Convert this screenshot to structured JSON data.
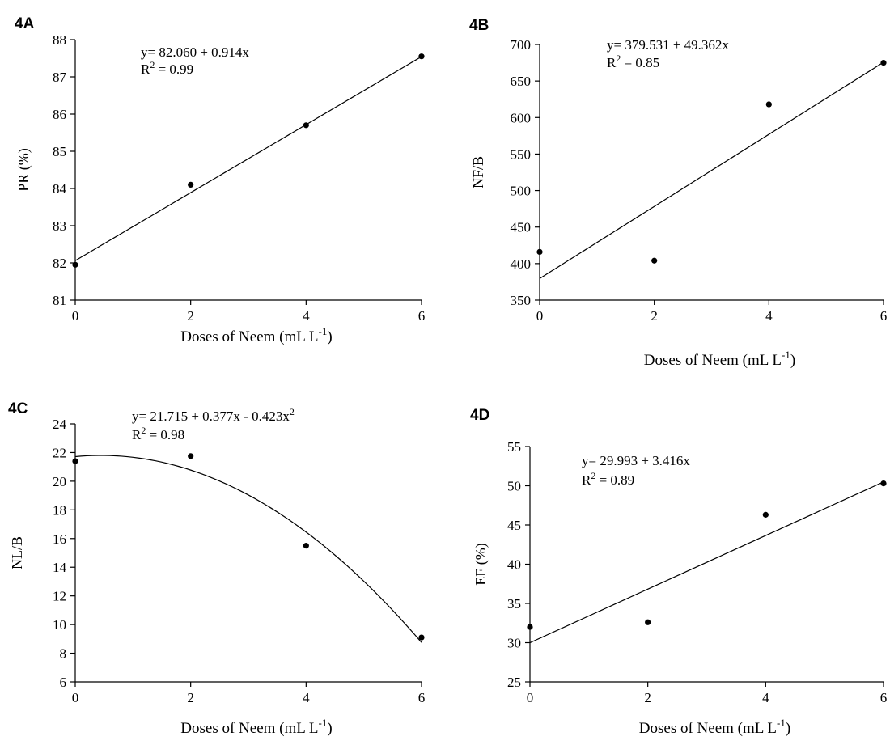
{
  "chart_data": [
    {
      "panel_label": "4A",
      "type": "scatter",
      "x": [
        0,
        2,
        4,
        6
      ],
      "y": [
        81.95,
        84.1,
        85.7,
        87.55
      ],
      "fit": {
        "kind": "linear",
        "intercept": 82.06,
        "b1": 0.914,
        "b2": 0
      },
      "equation": "y= 82.060 + 0.914x",
      "r2_prefix": "R",
      "r2_sup": "2",
      "r2_value": " = 0.99",
      "ylabel": "PR (%)",
      "xlabel": "Doses of Neem (mL L",
      "xlabel_sup": "-1",
      "xlabel_end": ")",
      "xlim": [
        0,
        6
      ],
      "ylim": [
        81,
        88
      ],
      "xticks": [
        0,
        2,
        4,
        6
      ],
      "yticks": [
        81,
        82,
        83,
        84,
        85,
        86,
        87,
        88
      ],
      "grid": false
    },
    {
      "panel_label": "4B",
      "type": "scatter",
      "x": [
        0,
        2,
        4,
        6
      ],
      "y": [
        416,
        404,
        618,
        675
      ],
      "fit": {
        "kind": "linear",
        "intercept": 379.531,
        "b1": 49.362,
        "b2": 0
      },
      "equation": "y= 379.531 + 49.362x",
      "r2_prefix": "R",
      "r2_sup": "2",
      "r2_value": " = 0.85",
      "ylabel": "NF/B",
      "xlabel": "Doses of Neem (mL  L",
      "xlabel_sup": "-1",
      "xlabel_end": ")",
      "xlim": [
        0,
        6
      ],
      "ylim": [
        350,
        700
      ],
      "xticks": [
        0,
        2,
        4,
        6
      ],
      "yticks": [
        350,
        400,
        450,
        500,
        550,
        600,
        650,
        700
      ],
      "grid": false
    },
    {
      "panel_label": "4C",
      "type": "scatter",
      "x": [
        0,
        2,
        4,
        6
      ],
      "y": [
        21.4,
        21.75,
        15.5,
        9.1
      ],
      "fit": {
        "kind": "quadratic",
        "intercept": 21.715,
        "b1": 0.377,
        "b2": -0.423
      },
      "equation": "y= 21.715 + 0.377x - 0.423x",
      "equation_sup": "2",
      "r2_prefix": "R",
      "r2_sup": "2",
      "r2_value": " = 0.98",
      "ylabel": "NL/B",
      "xlabel": "Doses of Neem (mL L",
      "xlabel_sup": "-1",
      "xlabel_end": ")",
      "xlim": [
        0,
        6
      ],
      "ylim": [
        6,
        24
      ],
      "xticks": [
        0,
        2,
        4,
        6
      ],
      "yticks": [
        6,
        8,
        10,
        12,
        14,
        16,
        18,
        20,
        22,
        24
      ],
      "grid": false
    },
    {
      "panel_label": "4D",
      "type": "scatter",
      "x": [
        0,
        2,
        4,
        6
      ],
      "y": [
        32.0,
        32.6,
        46.3,
        50.3
      ],
      "fit": {
        "kind": "linear",
        "intercept": 29.993,
        "b1": 3.416,
        "b2": 0
      },
      "equation": "y= 29.993 + 3.416x",
      "r2_prefix": "R",
      "r2_sup": "2",
      "r2_value": " = 0.89",
      "ylabel": "EF (%)",
      "xlabel": "Doses of Neem (mL  L",
      "xlabel_sup": "-1",
      "xlabel_end": ")",
      "xlim": [
        0,
        6
      ],
      "ylim": [
        25,
        55
      ],
      "xticks": [
        0,
        2,
        4,
        6
      ],
      "yticks": [
        25,
        30,
        35,
        40,
        45,
        50,
        55
      ],
      "grid": false
    }
  ]
}
